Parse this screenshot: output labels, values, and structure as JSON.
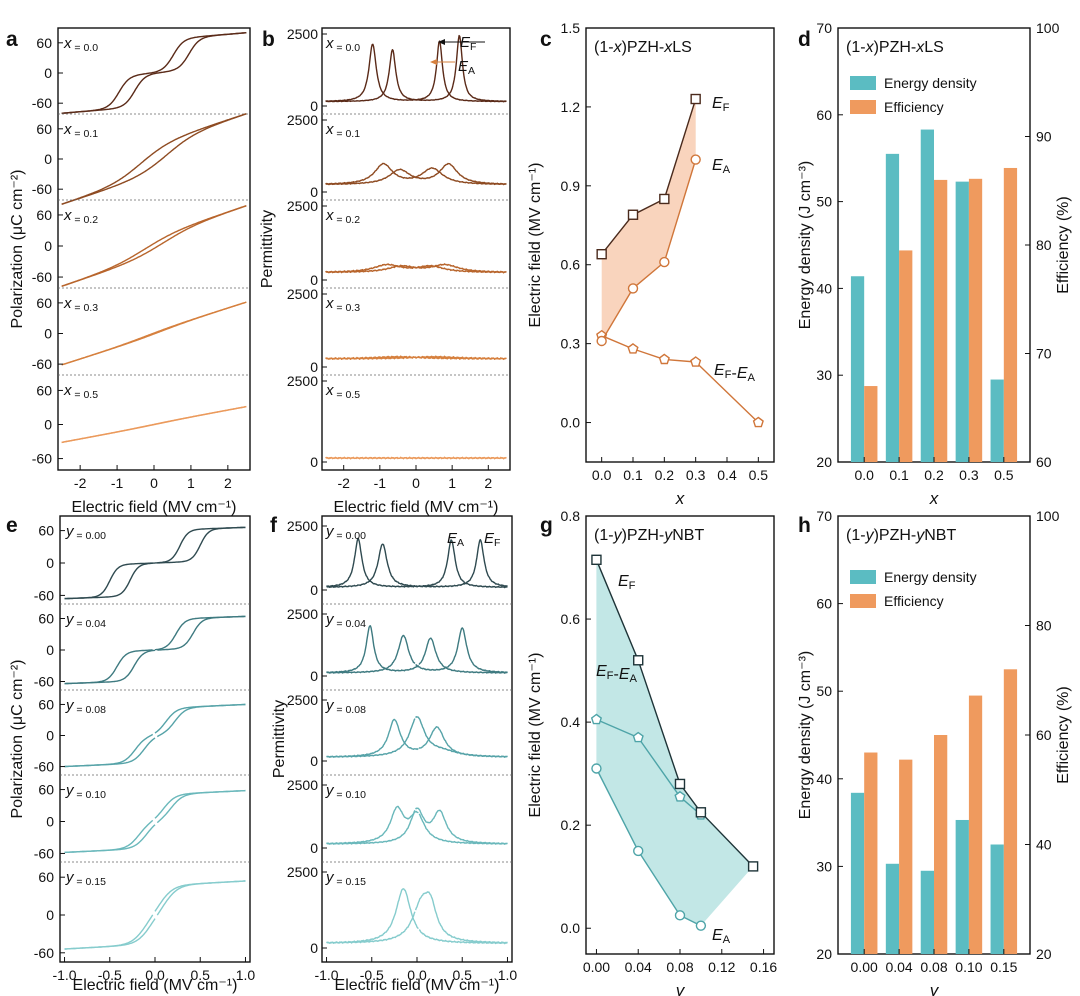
{
  "colors": {
    "x00": "#5a2a18",
    "x01": "#8e4b22",
    "x02": "#b8652c",
    "x03": "#d6803e",
    "x05": "#eb9a5c",
    "y000": "#2f4a50",
    "y004": "#3e7a80",
    "y008": "#56a3a8",
    "y010": "#6ab8bb",
    "y015": "#86cccd",
    "teal_bar": "#5bbcc2",
    "orange_bar": "#ef9a5e",
    "fillLS": "#f8cdb2",
    "fillNBT": "#b7e3e2",
    "lineLS": "#d0763a",
    "lineNBT_F": "#1e3438",
    "lineNBT_A": "#4ea4a8"
  },
  "panels": {
    "a": {
      "letter": "a",
      "xlabel": "Electric field (MV cm⁻¹)",
      "ylabel": "Polarization (μC cm⁻²)",
      "x_ticks": [
        "-2",
        "-1",
        "0",
        "1",
        "2"
      ],
      "y_ticks": [
        "60",
        "0",
        "-60"
      ],
      "sub_labels": [
        "x = 0.0",
        "x = 0.1",
        "x = 0.2",
        "x = 0.3",
        "x = 0.5"
      ]
    },
    "b": {
      "letter": "b",
      "xlabel": "Electric field (MV cm⁻¹)",
      "ylabel": "Permittivity",
      "x_ticks": [
        "-2",
        "-1",
        "0",
        "1",
        "2"
      ],
      "y_ticks": [
        "2500",
        "0"
      ],
      "sub_labels": [
        "x = 0.0",
        "x = 0.1",
        "x = 0.2",
        "x = 0.3",
        "x = 0.5"
      ],
      "ann_F": "EF",
      "ann_A": "EA"
    },
    "c": {
      "letter": "c",
      "title": "(1-x)PZH-xLS",
      "xlabel": "x",
      "ylabel": "Electric field (MV cm⁻¹)",
      "x_ticks": [
        "0.0",
        "0.1",
        "0.2",
        "0.3",
        "0.4",
        "0.5"
      ],
      "y_ticks": [
        "0.0",
        "0.3",
        "0.6",
        "0.9",
        "1.2",
        "1.5"
      ],
      "label_F": "EF",
      "label_A": "EA",
      "label_FA": "EF-EA"
    },
    "d": {
      "letter": "d",
      "title": "(1-x)PZH-xLS",
      "xlabel": "x",
      "ylabel_left": "Energy density (J cm⁻³)",
      "ylabel_right": "Efficiency (%)",
      "x_ticks": [
        "0.0",
        "0.1",
        "0.2",
        "0.3",
        "0.5"
      ],
      "y_ticks_left": [
        "20",
        "30",
        "40",
        "50",
        "60",
        "70"
      ],
      "y_ticks_right": [
        "60",
        "70",
        "80",
        "90",
        "100"
      ],
      "legend": [
        "Energy density",
        "Efficiency"
      ]
    },
    "e": {
      "letter": "e",
      "xlabel": "Electric field (MV cm⁻¹)",
      "ylabel": "Polarization (μC cm⁻²)",
      "x_ticks": [
        "-1.0",
        "-0.5",
        "0.0",
        "0.5",
        "1.0"
      ],
      "y_ticks": [
        "60",
        "0",
        "-60"
      ],
      "sub_labels": [
        "y = 0.00",
        "y = 0.04",
        "y = 0.08",
        "y = 0.10",
        "y = 0.15"
      ]
    },
    "f": {
      "letter": "f",
      "xlabel": "Electric field (MV cm⁻¹)",
      "ylabel": "Permittivity",
      "x_ticks": [
        "-1.0",
        "-0.5",
        "0.0",
        "0.5",
        "1.0"
      ],
      "y_ticks": [
        "2500",
        "0"
      ],
      "sub_labels": [
        "y = 0.00",
        "y = 0.04",
        "y = 0.08",
        "y = 0.10",
        "y = 0.15"
      ],
      "ann_A": "EA",
      "ann_F": "EF"
    },
    "g": {
      "letter": "g",
      "title": "(1-y)PZH-yNBT",
      "xlabel": "y",
      "ylabel": "Electric field (MV cm⁻¹)",
      "x_ticks": [
        "0.00",
        "0.04",
        "0.08",
        "0.12",
        "0.16"
      ],
      "y_ticks": [
        "0.0",
        "0.2",
        "0.4",
        "0.6",
        "0.8"
      ],
      "label_F": "EF",
      "label_A": "EA",
      "label_FA": "EF-EA"
    },
    "h": {
      "letter": "h",
      "title": "(1-y)PZH-yNBT",
      "xlabel": "y",
      "ylabel_left": "Energy density (J cm⁻³)",
      "ylabel_right": "Efficiency (%)",
      "x_ticks": [
        "0.00",
        "0.04",
        "0.08",
        "0.10",
        "0.15"
      ],
      "y_ticks_left": [
        "20",
        "30",
        "40",
        "50",
        "60",
        "70"
      ],
      "y_ticks_right": [
        "20",
        "40",
        "60",
        "80",
        "100"
      ],
      "legend": [
        "Energy density",
        "Efficiency"
      ]
    }
  },
  "chart_data": [
    {
      "panel": "c",
      "type": "line",
      "title": "(1-x)PZH-xLS",
      "xlabel": "x",
      "ylabel": "Electric field (MV cm-1)",
      "xlim": [
        -0.05,
        0.55
      ],
      "ylim": [
        -0.15,
        1.5
      ],
      "series": [
        {
          "name": "EF",
          "x": [
            0.0,
            0.1,
            0.2,
            0.3
          ],
          "y": [
            0.64,
            0.79,
            0.85,
            1.23
          ]
        },
        {
          "name": "EA",
          "x": [
            0.0,
            0.1,
            0.2,
            0.3
          ],
          "y": [
            0.31,
            0.51,
            0.61,
            1.0
          ]
        },
        {
          "name": "EF-EA",
          "x": [
            0.0,
            0.1,
            0.2,
            0.3,
            0.5
          ],
          "y": [
            0.33,
            0.28,
            0.24,
            0.23,
            0.0
          ]
        }
      ]
    },
    {
      "panel": "d",
      "type": "bar",
      "title": "(1-x)PZH-xLS",
      "xlabel": "x",
      "categories": [
        "0.0",
        "0.1",
        "0.2",
        "0.3",
        "0.5"
      ],
      "ylim_left": [
        20,
        70
      ],
      "ylim_right": [
        60,
        100
      ],
      "series": [
        {
          "name": "Energy density",
          "axis": "left",
          "values": [
            41.4,
            55.5,
            58.3,
            52.3,
            29.5
          ]
        },
        {
          "name": "Efficiency",
          "axis": "right",
          "values": [
            67.0,
            79.5,
            86.0,
            86.1,
            87.1
          ]
        }
      ]
    },
    {
      "panel": "g",
      "type": "line",
      "title": "(1-y)PZH-yNBT",
      "xlabel": "y",
      "ylabel": "Electric field (MV cm-1)",
      "xlim": [
        -0.01,
        0.17
      ],
      "ylim": [
        -0.05,
        0.8
      ],
      "series": [
        {
          "name": "EF",
          "x": [
            0.0,
            0.04,
            0.08,
            0.1,
            0.15
          ],
          "y": [
            0.715,
            0.52,
            0.28,
            0.225,
            0.12
          ]
        },
        {
          "name": "EA",
          "x": [
            0.0,
            0.04,
            0.08,
            0.1
          ],
          "y": [
            0.31,
            0.15,
            0.025,
            0.005
          ]
        },
        {
          "name": "EF-EA",
          "x": [
            0.0,
            0.04,
            0.08,
            0.1
          ],
          "y": [
            0.405,
            0.37,
            0.255,
            0.22
          ]
        }
      ]
    },
    {
      "panel": "h",
      "type": "bar",
      "title": "(1-y)PZH-yNBT",
      "xlabel": "y",
      "categories": [
        "0.00",
        "0.04",
        "0.08",
        "0.10",
        "0.15"
      ],
      "ylim_left": [
        20,
        70
      ],
      "ylim_right": [
        20,
        100
      ],
      "series": [
        {
          "name": "Energy density",
          "axis": "left",
          "values": [
            38.4,
            30.3,
            29.5,
            35.3,
            32.5
          ]
        },
        {
          "name": "Efficiency",
          "axis": "right",
          "values": [
            56.8,
            55.5,
            60.0,
            67.2,
            72.0
          ]
        }
      ]
    }
  ]
}
